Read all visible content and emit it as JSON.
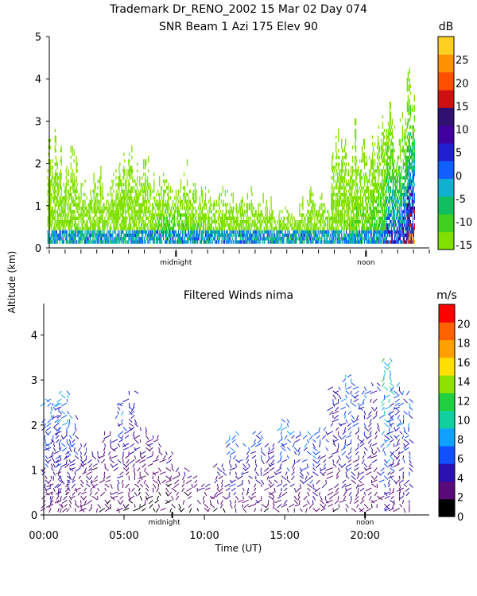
{
  "header": {
    "title_line1": "Trademark Dr_RENO_2002  15 Mar 02 Day 074",
    "title_line2": "SNR Beam 1 Azi 175 Elev 90"
  },
  "shared": {
    "ylabel": "Altitude (km)",
    "xlabel": "Time (UT)",
    "midnight_label": "midnight",
    "noon_label": "noon"
  },
  "chart_data": [
    {
      "type": "heatmap",
      "title": "SNR Beam 1 Azi 175 Elev 90",
      "xlabel": "Time (UT)",
      "ylabel": "Altitude (km)",
      "xlim": [
        0,
        24
      ],
      "ylim": [
        0,
        5
      ],
      "yticks": [
        0,
        1,
        2,
        3,
        4,
        5
      ],
      "colorbar": {
        "unit": "dB",
        "ticks": [
          -15,
          -10,
          -5,
          0,
          5,
          10,
          15,
          20,
          25
        ],
        "range": [
          -16,
          30
        ],
        "colors": [
          "#80e000",
          "#40d020",
          "#10c060",
          "#10b0d0",
          "#1060ff",
          "#2020d0",
          "#4000a0",
          "#301070",
          "#d01010",
          "#ff5000",
          "#ff9000",
          "#ffd020"
        ]
      },
      "columns": [
        {
          "t": 0.1,
          "top": 2.6,
          "peak": -12
        },
        {
          "t": 0.5,
          "top": 2.8,
          "peak": -12
        },
        {
          "t": 1.0,
          "top": 2.3,
          "peak": -12
        },
        {
          "t": 1.5,
          "top": 2.6,
          "peak": -11
        },
        {
          "t": 2.0,
          "top": 1.6,
          "peak": -12
        },
        {
          "t": 2.5,
          "top": 1.5,
          "peak": -12
        },
        {
          "t": 3.0,
          "top": 2.0,
          "peak": -12
        },
        {
          "t": 3.5,
          "top": 1.6,
          "peak": -12
        },
        {
          "t": 4.0,
          "top": 1.9,
          "peak": -12
        },
        {
          "t": 4.5,
          "top": 2.3,
          "peak": -12
        },
        {
          "t": 5.0,
          "top": 2.5,
          "peak": -12
        },
        {
          "t": 5.5,
          "top": 2.0,
          "peak": -12
        },
        {
          "t": 6.0,
          "top": 2.2,
          "peak": -11
        },
        {
          "t": 6.5,
          "top": 1.8,
          "peak": -11
        },
        {
          "t": 7.0,
          "top": 1.9,
          "peak": -8
        },
        {
          "t": 7.5,
          "top": 1.8,
          "peak": -6
        },
        {
          "t": 8.0,
          "top": 1.6,
          "peak": -6
        },
        {
          "t": 8.5,
          "top": 2.1,
          "peak": -8
        },
        {
          "t": 9.0,
          "top": 1.6,
          "peak": -10
        },
        {
          "t": 9.5,
          "top": 1.4,
          "peak": -8
        },
        {
          "t": 10.0,
          "top": 1.5,
          "peak": -10
        },
        {
          "t": 10.5,
          "top": 1.4,
          "peak": -10
        },
        {
          "t": 11.0,
          "top": 1.5,
          "peak": -11
        },
        {
          "t": 11.5,
          "top": 1.3,
          "peak": -11
        },
        {
          "t": 12.0,
          "top": 1.2,
          "peak": -11
        },
        {
          "t": 12.5,
          "top": 1.4,
          "peak": -11
        },
        {
          "t": 13.0,
          "top": 1.3,
          "peak": -11
        },
        {
          "t": 13.5,
          "top": 1.4,
          "peak": -11
        },
        {
          "t": 14.0,
          "top": 1.2,
          "peak": -11
        },
        {
          "t": 14.5,
          "top": 0.9,
          "peak": -9
        },
        {
          "t": 15.0,
          "top": 1.0,
          "peak": -11
        },
        {
          "t": 15.5,
          "top": 0.9,
          "peak": -11
        },
        {
          "t": 16.0,
          "top": 1.2,
          "peak": -11
        },
        {
          "t": 16.5,
          "top": 1.6,
          "peak": -11
        },
        {
          "t": 17.0,
          "top": 1.4,
          "peak": -11
        },
        {
          "t": 17.5,
          "top": 1.2,
          "peak": -11
        },
        {
          "t": 18.0,
          "top": 2.8,
          "peak": -11
        },
        {
          "t": 18.5,
          "top": 2.9,
          "peak": -11
        },
        {
          "t": 19.0,
          "top": 2.6,
          "peak": -11
        },
        {
          "t": 19.5,
          "top": 3.1,
          "peak": -10
        },
        {
          "t": 20.0,
          "top": 2.7,
          "peak": -9
        },
        {
          "t": 20.5,
          "top": 2.9,
          "peak": -8
        },
        {
          "t": 21.0,
          "top": 3.3,
          "peak": -6
        },
        {
          "t": 21.5,
          "top": 3.6,
          "peak": 10
        },
        {
          "t": 22.0,
          "top": 3.2,
          "peak": 8
        },
        {
          "t": 22.5,
          "top": 3.5,
          "peak": 14
        },
        {
          "t": 22.8,
          "top": 4.6,
          "peak": 22
        }
      ]
    },
    {
      "type": "scatter",
      "title": "Filtered Winds nima",
      "xlabel": "Time (UT)",
      "ylabel": "Altitude (km)",
      "xlim": [
        0,
        24
      ],
      "ylim": [
        0,
        4.7
      ],
      "xticks": [
        "00:00",
        "05:00",
        "10:00",
        "15:00",
        "20:00"
      ],
      "xtick_values": [
        0,
        5,
        10,
        15,
        20
      ],
      "yticks": [
        0,
        1,
        2,
        3,
        4
      ],
      "colorbar": {
        "unit": "m/s",
        "ticks": [
          0,
          2,
          4,
          6,
          8,
          10,
          12,
          14,
          16,
          18,
          20
        ],
        "range": [
          0,
          22
        ],
        "colors": [
          "#000000",
          "#5a0a78",
          "#2a10b0",
          "#1050ff",
          "#10a0ff",
          "#10d0a0",
          "#20d040",
          "#90e000",
          "#ffe000",
          "#ffa000",
          "#ff6000",
          "#ff0000"
        ]
      },
      "profiles": [
        {
          "t": 0.3,
          "top": 2.6,
          "speed": 6
        },
        {
          "t": 0.8,
          "top": 2.5,
          "speed": 5
        },
        {
          "t": 1.3,
          "top": 2.8,
          "speed": 6
        },
        {
          "t": 1.8,
          "top": 2.3,
          "speed": 5
        },
        {
          "t": 2.5,
          "top": 1.6,
          "speed": 4
        },
        {
          "t": 3.2,
          "top": 1.5,
          "speed": 4
        },
        {
          "t": 4.0,
          "top": 1.9,
          "speed": 3
        },
        {
          "t": 4.8,
          "top": 2.5,
          "speed": 5
        },
        {
          "t": 5.5,
          "top": 2.8,
          "speed": 4
        },
        {
          "t": 6.2,
          "top": 2.0,
          "speed": 3
        },
        {
          "t": 7.0,
          "top": 1.8,
          "speed": 3
        },
        {
          "t": 7.8,
          "top": 1.5,
          "speed": 3
        },
        {
          "t": 8.6,
          "top": 1.1,
          "speed": 3
        },
        {
          "t": 9.4,
          "top": 0.9,
          "speed": 3
        },
        {
          "t": 10.2,
          "top": 0.7,
          "speed": 4
        },
        {
          "t": 11.0,
          "top": 1.2,
          "speed": 4
        },
        {
          "t": 11.8,
          "top": 1.9,
          "speed": 6
        },
        {
          "t": 12.6,
          "top": 1.6,
          "speed": 5
        },
        {
          "t": 13.4,
          "top": 1.9,
          "speed": 5
        },
        {
          "t": 14.2,
          "top": 1.6,
          "speed": 4
        },
        {
          "t": 15.0,
          "top": 2.2,
          "speed": 6
        },
        {
          "t": 15.8,
          "top": 1.9,
          "speed": 5
        },
        {
          "t": 16.6,
          "top": 1.9,
          "speed": 6
        },
        {
          "t": 17.4,
          "top": 2.0,
          "speed": 5
        },
        {
          "t": 18.2,
          "top": 2.9,
          "speed": 4
        },
        {
          "t": 19.0,
          "top": 3.2,
          "speed": 6
        },
        {
          "t": 19.8,
          "top": 2.9,
          "speed": 5
        },
        {
          "t": 20.6,
          "top": 3.0,
          "speed": 4
        },
        {
          "t": 21.4,
          "top": 3.5,
          "speed": 8
        },
        {
          "t": 22.0,
          "top": 3.0,
          "speed": 5
        },
        {
          "t": 22.6,
          "top": 2.8,
          "speed": 6
        }
      ]
    }
  ]
}
